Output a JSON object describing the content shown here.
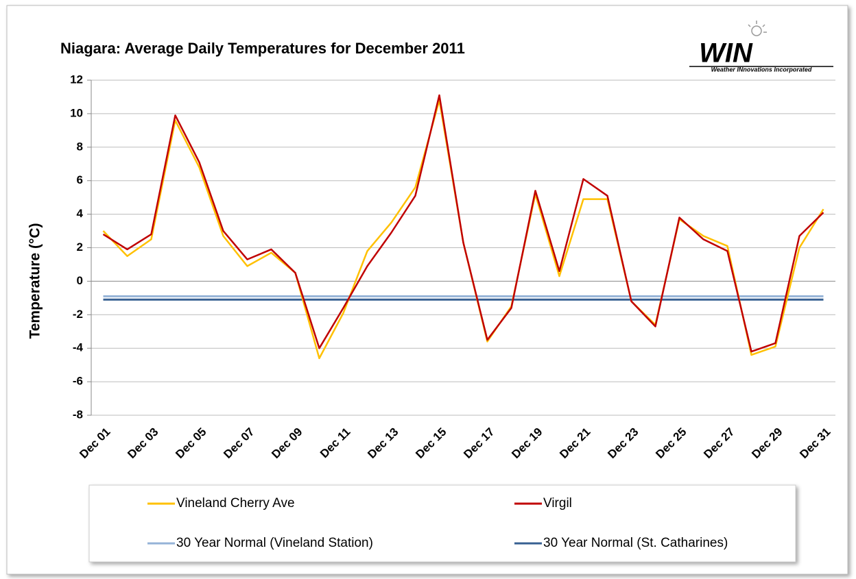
{
  "chart_data": {
    "type": "line",
    "title": "Niagara: Average Daily Temperatures for December 2011",
    "y_label": "Temperature (°C)",
    "logo": {
      "text": "WIN",
      "subtitle": "Weather INnovations Incorporated"
    },
    "categories": [
      "Dec 01",
      null,
      "Dec 03",
      null,
      "Dec 05",
      null,
      "Dec 07",
      null,
      "Dec 09",
      null,
      "Dec 11",
      null,
      "Dec 13",
      null,
      "Dec 15",
      null,
      "Dec 17",
      null,
      "Dec 19",
      null,
      "Dec 21",
      null,
      "Dec 23",
      null,
      "Dec 25",
      null,
      "Dec 27",
      null,
      "Dec 29",
      null,
      "Dec 31"
    ],
    "series": [
      {
        "name": "Vineland Cherry Ave",
        "color": "#ffc000",
        "values": [
          3.0,
          1.5,
          2.5,
          9.6,
          6.8,
          2.7,
          0.9,
          1.7,
          0.5,
          -4.6,
          -1.9,
          1.8,
          3.5,
          5.6,
          10.8,
          2.3,
          -3.6,
          -1.5,
          5.2,
          0.3,
          4.9,
          4.9,
          -1.2,
          -2.6,
          3.7,
          2.7,
          2.1,
          -4.4,
          -3.9,
          2.0,
          4.3
        ]
      },
      {
        "name": "Virgil",
        "color": "#c00000",
        "values": [
          2.8,
          1.9,
          2.8,
          9.9,
          7.1,
          3.0,
          1.3,
          1.9,
          0.5,
          -4.0,
          -1.6,
          0.9,
          2.9,
          5.1,
          11.1,
          2.3,
          -3.5,
          -1.6,
          5.4,
          0.6,
          6.1,
          5.1,
          -1.2,
          -2.7,
          3.8,
          2.5,
          1.8,
          -4.2,
          -3.7,
          2.7,
          4.1
        ]
      },
      {
        "name": "30 Year Normal (Vineland Station)",
        "color": "#95b3d7",
        "values": [
          -0.9,
          -0.9,
          -0.9,
          -0.9,
          -0.9,
          -0.9,
          -0.9,
          -0.9,
          -0.9,
          -0.9,
          -0.9,
          -0.9,
          -0.9,
          -0.9,
          -0.9,
          -0.9,
          -0.9,
          -0.9,
          -0.9,
          -0.9,
          -0.9,
          -0.9,
          -0.9,
          -0.9,
          -0.9,
          -0.9,
          -0.9,
          -0.9,
          -0.9,
          -0.9,
          -0.9
        ]
      },
      {
        "name": "30 Year Normal (St. Catharines)",
        "color": "#376092",
        "values": [
          -1.1,
          -1.1,
          -1.1,
          -1.1,
          -1.1,
          -1.1,
          -1.1,
          -1.1,
          -1.1,
          -1.1,
          -1.1,
          -1.1,
          -1.1,
          -1.1,
          -1.1,
          -1.1,
          -1.1,
          -1.1,
          -1.1,
          -1.1,
          -1.1,
          -1.1,
          -1.1,
          -1.1,
          -1.1,
          -1.1,
          -1.1,
          -1.1,
          -1.1,
          -1.1,
          -1.1
        ]
      }
    ],
    "ylim": [
      -8,
      12
    ],
    "yticks": [
      -8,
      -6,
      -4,
      -2,
      0,
      2,
      4,
      6,
      8,
      10,
      12
    ],
    "grid": true,
    "legend": "bottom"
  }
}
